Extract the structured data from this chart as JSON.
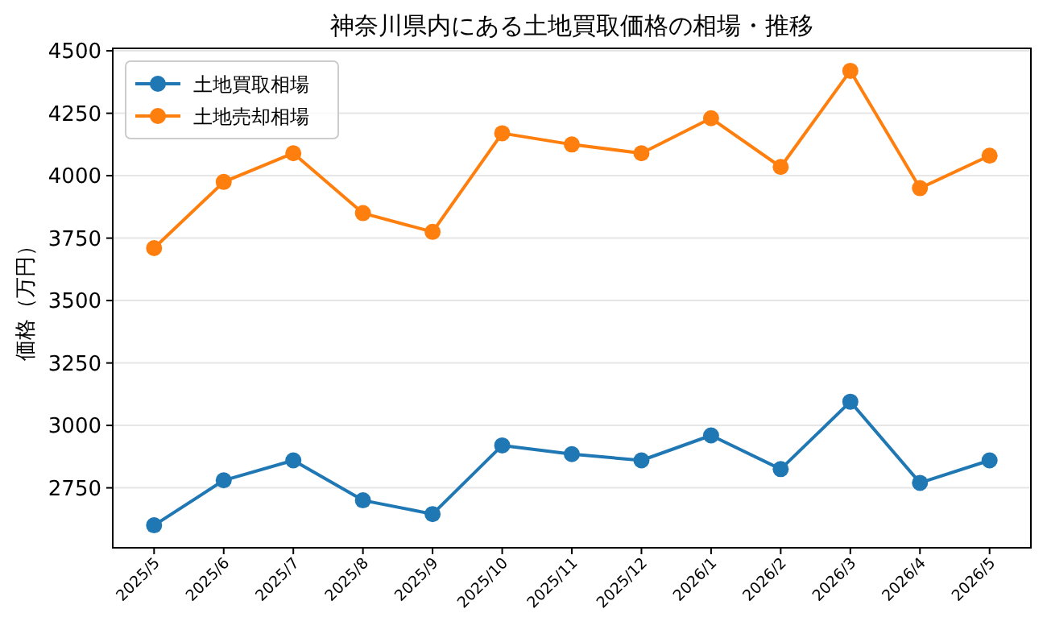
{
  "chart_data": {
    "type": "line",
    "title": "神奈川県内にある土地買取価格の相場・推移",
    "ylabel": "価格（万円）",
    "categories": [
      "2025/5",
      "2025/6",
      "2025/7",
      "2025/8",
      "2025/9",
      "2025/10",
      "2025/11",
      "2025/12",
      "2026/1",
      "2026/2",
      "2026/3",
      "2026/4",
      "2026/5"
    ],
    "series": [
      {
        "name": "土地買取相場",
        "color": "#1f77b4",
        "values": [
          2600,
          2780,
          2860,
          2700,
          2645,
          2920,
          2885,
          2860,
          2960,
          2825,
          3095,
          2770,
          2860
        ]
      },
      {
        "name": "土地売却相場",
        "color": "#ff7f0e",
        "values": [
          3710,
          3975,
          4090,
          3850,
          3775,
          4170,
          4125,
          4090,
          4230,
          4035,
          4420,
          3950,
          4080
        ]
      }
    ],
    "ylim": [
      2510,
      4510
    ],
    "yticks": [
      2750,
      3000,
      3250,
      3500,
      3750,
      4000,
      4250,
      4500
    ],
    "grid": "y",
    "legend": "top left",
    "marker": "circle",
    "line_style": "solid"
  }
}
